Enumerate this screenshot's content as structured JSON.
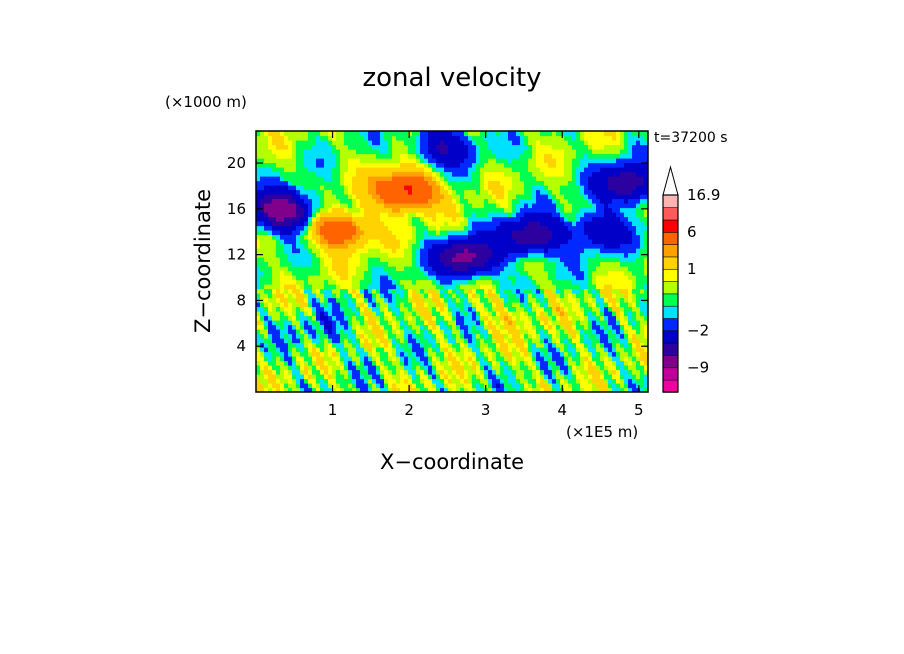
{
  "chart_data": {
    "type": "heatmap",
    "title": "zonal velocity",
    "xlabel": "X−coordinate",
    "ylabel": "Z−coordinate",
    "x_unit": "(×1E5 m)",
    "y_unit": "(×1000 m)",
    "time_label": "t=37200 s",
    "xlim": [
      0,
      5.12
    ],
    "ylim": [
      0,
      22.8
    ],
    "x_ticks": [
      "1",
      "2",
      "3",
      "4",
      "5"
    ],
    "x_tick_values": [
      1,
      2,
      3,
      4,
      5
    ],
    "y_ticks": [
      "4",
      "8",
      "12",
      "16",
      "20"
    ],
    "y_tick_values": [
      4,
      8,
      12,
      16,
      20
    ],
    "colorbar": {
      "tick_labels": [
        "16.9",
        "6",
        "1",
        "−2",
        "−9"
      ],
      "levels": [
        -16,
        -12,
        -9,
        -6,
        -4,
        -2,
        -1,
        -0.5,
        0,
        0.5,
        1,
        2,
        3,
        6,
        9,
        12,
        16.9
      ],
      "colors": [
        "#f000a0",
        "#c0009c",
        "#80008c",
        "#2d00a0",
        "#0000c8",
        "#0028ff",
        "#00e1ff",
        "#00ff50",
        "#b4ff00",
        "#ffff00",
        "#ffd200",
        "#ffa000",
        "#ff6400",
        "#ff0000",
        "#ff5a5a",
        "#ffb4b4"
      ]
    },
    "field_features": [
      {
        "x": 0.35,
        "z": 15.9,
        "value": -8
      },
      {
        "x": 1.1,
        "z": 14.2,
        "value": 5
      },
      {
        "x": 1.95,
        "z": 17.6,
        "value": 7
      },
      {
        "x": 2.75,
        "z": 11.8,
        "value": -7
      },
      {
        "x": 3.6,
        "z": 13.7,
        "value": -6
      },
      {
        "x": 4.85,
        "z": 18.2,
        "value": -6
      },
      {
        "x": 4.5,
        "z": 14.2,
        "value": -4
      },
      {
        "x": 2.45,
        "z": 21.5,
        "value": -4
      },
      {
        "x": 0.85,
        "z": 5.5,
        "value": -1
      },
      {
        "x": 3.3,
        "z": 6.8,
        "value": 1
      }
    ]
  }
}
